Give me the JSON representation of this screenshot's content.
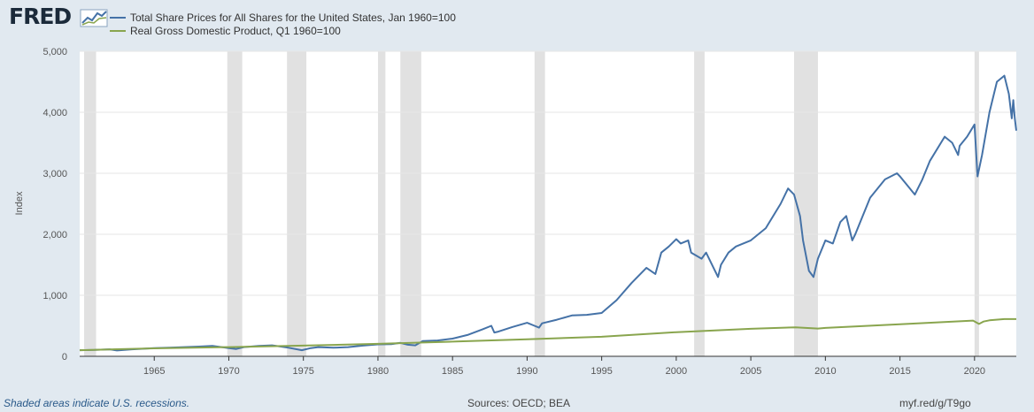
{
  "header": {
    "logo_text": "FRED",
    "logo_icon": "chart-line-icon"
  },
  "chart_data": {
    "type": "line",
    "ylabel": "Index",
    "ylim": [
      0,
      5000
    ],
    "xlim": [
      1960.0,
      2022.8
    ],
    "yticks": [
      0,
      1000,
      2000,
      3000,
      4000,
      5000
    ],
    "ytick_labels": [
      "0",
      "1,000",
      "2,000",
      "3,000",
      "4,000",
      "5,000"
    ],
    "xticks": [
      "1965",
      "1970",
      "1975",
      "1980",
      "1985",
      "1990",
      "1995",
      "2000",
      "2005",
      "2010",
      "2015",
      "2020"
    ],
    "grid": "horizontal",
    "legend_position": "top-left",
    "recessions": [
      [
        1960.3,
        1961.1
      ],
      [
        1969.9,
        1970.9
      ],
      [
        1973.9,
        1975.2
      ],
      [
        1980.0,
        1980.5
      ],
      [
        1981.5,
        1982.9
      ],
      [
        1990.5,
        1991.2
      ],
      [
        2001.2,
        2001.9
      ],
      [
        2007.9,
        2009.5
      ],
      [
        2020.0,
        2020.3
      ]
    ],
    "series": [
      {
        "name": "Total Share Prices for All Shares for the United States, Jan 1960=100",
        "color": "#4572a7",
        "x": [
          1960.0,
          1961.0,
          1962.0,
          1962.5,
          1963.5,
          1965.0,
          1966.0,
          1967.0,
          1968.0,
          1968.9,
          1970.0,
          1970.5,
          1971.0,
          1972.0,
          1972.9,
          1973.5,
          1974.0,
          1974.9,
          1975.5,
          1976.0,
          1977.0,
          1978.0,
          1979.0,
          1980.0,
          1980.9,
          1981.5,
          1982.0,
          1982.5,
          1983.0,
          1984.0,
          1985.0,
          1986.0,
          1987.0,
          1987.6,
          1987.8,
          1988.0,
          1989.0,
          1990.0,
          1990.5,
          1990.8,
          1991.0,
          1992.0,
          1993.0,
          1994.0,
          1995.0,
          1996.0,
          1997.0,
          1998.0,
          1998.6,
          1999.0,
          1999.5,
          2000.0,
          2000.3,
          2000.8,
          2001.0,
          2001.7,
          2002.0,
          2002.5,
          2002.8,
          2003.0,
          2003.5,
          2004.0,
          2005.0,
          2006.0,
          2007.0,
          2007.5,
          2007.9,
          2008.3,
          2008.5,
          2008.9,
          2009.2,
          2009.5,
          2010.0,
          2010.5,
          2011.0,
          2011.4,
          2011.8,
          2012.0,
          2013.0,
          2014.0,
          2014.8,
          2015.0,
          2015.5,
          2016.0,
          2016.5,
          2017.0,
          2018.0,
          2018.5,
          2018.9,
          2019.0,
          2019.5,
          2020.0,
          2020.2,
          2020.5,
          2021.0,
          2021.5,
          2022.0,
          2022.3,
          2022.5,
          2022.6,
          2022.7,
          2022.8
        ],
        "values": [
          100,
          105,
          115,
          95,
          115,
          135,
          140,
          150,
          160,
          170,
          135,
          120,
          150,
          170,
          180,
          160,
          140,
          100,
          135,
          150,
          140,
          150,
          175,
          195,
          200,
          220,
          190,
          180,
          250,
          260,
          290,
          350,
          440,
          500,
          390,
          400,
          480,
          550,
          500,
          470,
          540,
          600,
          670,
          680,
          710,
          920,
          1200,
          1450,
          1350,
          1700,
          1800,
          1920,
          1850,
          1900,
          1700,
          1600,
          1700,
          1450,
          1300,
          1500,
          1700,
          1800,
          1900,
          2100,
          2500,
          2750,
          2650,
          2300,
          1900,
          1400,
          1300,
          1600,
          1900,
          1850,
          2200,
          2300,
          1900,
          2000,
          2600,
          2900,
          3000,
          2950,
          2800,
          2650,
          2900,
          3200,
          3600,
          3500,
          3300,
          3450,
          3600,
          3800,
          2950,
          3300,
          4000,
          4500,
          4600,
          4300,
          3900,
          4200,
          3900,
          3700
        ]
      },
      {
        "name": "Real Gross Domestic Product, Q1 1960=100",
        "color": "#89a54e",
        "x": [
          1960.0,
          1965.0,
          1970.0,
          1975.0,
          1980.0,
          1985.0,
          1990.0,
          1995.0,
          2000.0,
          2005.0,
          2008.0,
          2009.5,
          2010.0,
          2015.0,
          2019.9,
          2020.3,
          2020.6,
          2021.0,
          2022.0,
          2022.8
        ],
        "values": [
          100,
          130,
          150,
          175,
          205,
          240,
          280,
          320,
          395,
          450,
          475,
          455,
          465,
          525,
          585,
          530,
          570,
          590,
          610,
          610
        ]
      }
    ]
  },
  "footer": {
    "note": "Shaded areas indicate U.S. recessions.",
    "sources": "Sources: OECD; BEA",
    "shortlink": "myf.red/g/T9go"
  }
}
